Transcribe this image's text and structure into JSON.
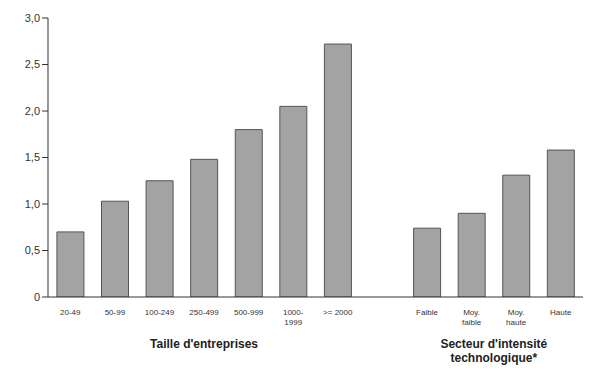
{
  "chart_data": {
    "type": "bar",
    "categories": [
      "20-49",
      "50-99",
      "100-249",
      "250-499",
      "500-999",
      "1000-\n1999",
      ">= 2000",
      null,
      "Faible",
      "Moy.\nfaible",
      "Moy.\nhaute",
      "Haute"
    ],
    "values": [
      0.7,
      1.03,
      1.25,
      1.48,
      1.8,
      2.05,
      2.72,
      null,
      0.74,
      0.9,
      1.31,
      1.58
    ],
    "color": "#a3a3a3",
    "ylim": [
      0,
      3
    ],
    "yticks": [
      0,
      {
        "value": 0.5,
        "label": "0,5"
      },
      {
        "value": 1,
        "label": "1,0"
      },
      {
        "value": 1.5,
        "label": "1,5"
      },
      {
        "value": 2,
        "label": "2,0"
      },
      {
        "value": 2.5,
        "label": "2,5"
      },
      {
        "value": 3,
        "label": "3,0"
      }
    ],
    "grid": false,
    "annotations": [
      "Taille d'entreprises",
      "Secteur d'intensité\ntechnologique*"
    ]
  }
}
